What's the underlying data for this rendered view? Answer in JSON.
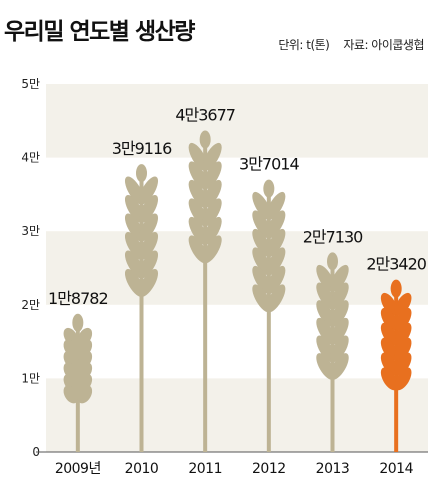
{
  "title": "우리밀 연도별 생산량",
  "unit_label": "단위: t(톤)",
  "source_label": "자료: 아이쿱생협",
  "colors": {
    "wheat": "#bdb394",
    "highlight": "#e8701f",
    "band": "#f3f1ea",
    "text": "#222222"
  },
  "chart_data": {
    "type": "bar",
    "categories": [
      "2009년",
      "2010",
      "2011",
      "2012",
      "2013",
      "2014"
    ],
    "values": [
      18782,
      39116,
      43677,
      37014,
      27130,
      23420
    ],
    "value_labels": [
      "1만8782",
      "3만9116",
      "4만3677",
      "3만7014",
      "2만7130",
      "2만3420"
    ],
    "yticks": [
      {
        "value": 0,
        "label": "0"
      },
      {
        "value": 10000,
        "label": "1만"
      },
      {
        "value": 20000,
        "label": "2만"
      },
      {
        "value": 30000,
        "label": "3만"
      },
      {
        "value": 40000,
        "label": "4만"
      },
      {
        "value": 50000,
        "label": "5만"
      }
    ],
    "ylim": [
      0,
      50000
    ],
    "highlight_index": 5,
    "grid": "alternating bands"
  }
}
